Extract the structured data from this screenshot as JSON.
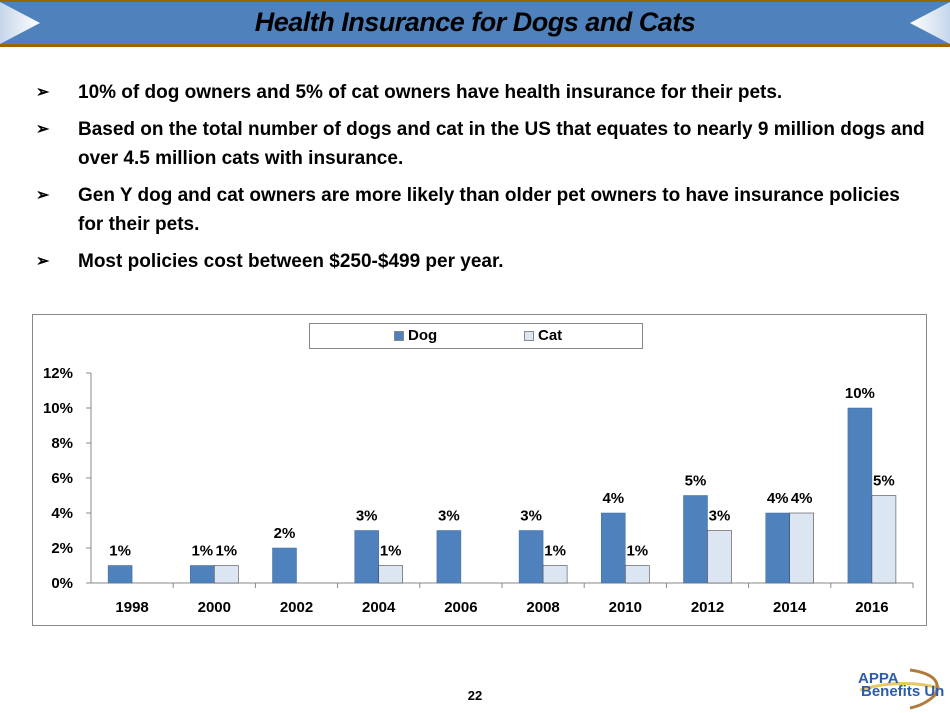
{
  "header": {
    "title": "Health Insurance for Dogs and Cats"
  },
  "bullets": [
    "10% of dog owners and 5% of cat owners have health insurance for their pets.",
    "Based on the total number of dogs and cat in the US that equates to nearly 9 million dogs and over 4.5 million cats with insurance.",
    "Gen Y dog and cat owners are more likely than older pet owners to have insurance policies for their pets.",
    "Most policies cost between $250-$499 per year."
  ],
  "bullet_icon": "arrowhead",
  "chart_data": {
    "type": "bar",
    "categories": [
      "1998",
      "2000",
      "2002",
      "2004",
      "2006",
      "2008",
      "2010",
      "2012",
      "2014",
      "2016"
    ],
    "series": [
      {
        "name": "Dog",
        "color": "#4f81bd",
        "values": [
          1,
          1,
          2,
          3,
          3,
          3,
          4,
          5,
          4,
          10
        ]
      },
      {
        "name": "Cat",
        "color": "#dce6f2",
        "values": [
          null,
          1,
          null,
          1,
          null,
          1,
          1,
          3,
          4,
          5
        ]
      }
    ],
    "yticks": [
      "0%",
      "2%",
      "4%",
      "6%",
      "8%",
      "10%",
      "12%"
    ],
    "ylim": [
      0,
      12
    ],
    "legend": "top",
    "grid": false
  },
  "page_number": "22",
  "logo": {
    "text": "APPA",
    "tagline": "Benefits Unleashed"
  }
}
